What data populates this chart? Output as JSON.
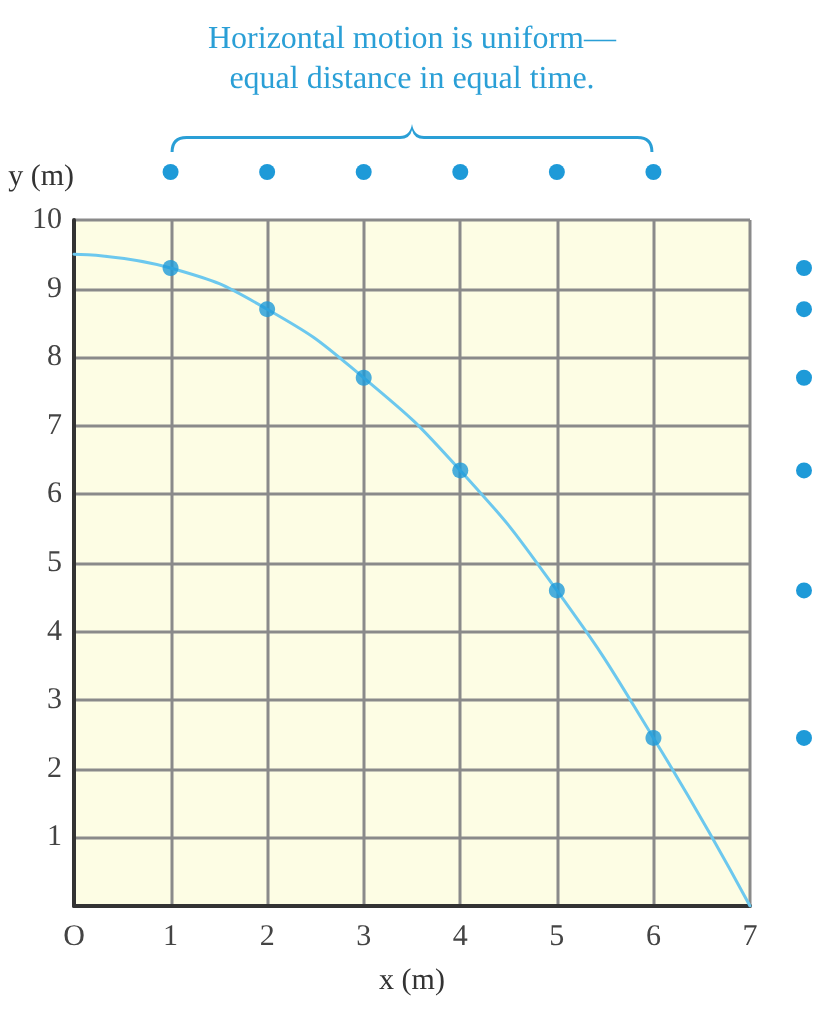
{
  "chart_data": {
    "type": "scatter",
    "annotations": [
      "Horizontal motion is uniform—equal distance in equal time."
    ],
    "xlabel": "x (m)",
    "ylabel": "y (m)",
    "xlim": [
      0,
      7
    ],
    "xticks": [
      {
        "value": 0,
        "label": "O"
      },
      1,
      2,
      3,
      4,
      5,
      6,
      7
    ],
    "ylim": [
      0,
      10
    ],
    "yticks": [
      {
        "value": 0,
        "label": null
      },
      1,
      2,
      3,
      4,
      5,
      6,
      7,
      8,
      9,
      10
    ],
    "grid": true,
    "series": [
      {
        "type": "line",
        "color": "#6cc8ee",
        "marker": "none",
        "line_style": "solid",
        "x": [
          0,
          1,
          2,
          3,
          4,
          5,
          6,
          7
        ],
        "values": [
          9.5,
          9.3,
          8.7,
          7.7,
          6.35,
          4.6,
          2.45,
          0
        ]
      },
      {
        "color": "#1e9ad8",
        "marker": "circle",
        "x": [
          1,
          2,
          3,
          4,
          5,
          6
        ],
        "values": [
          9.3,
          8.7,
          7.7,
          6.35,
          4.6,
          2.45
        ]
      }
    ]
  }
}
